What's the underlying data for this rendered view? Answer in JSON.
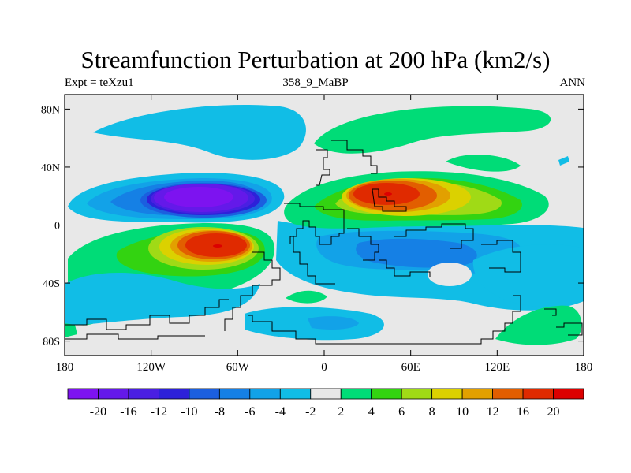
{
  "chart_data": {
    "type": "heatmap",
    "title": "Streamfunction Perturbation at 200 hPa (km2/s)",
    "subtitle_left": "Expt = teXzu1",
    "subtitle_center": "358_9_MaBP",
    "subtitle_right": "ANN",
    "x_range": [
      -180,
      180
    ],
    "y_range": [
      -90,
      90
    ],
    "x_ticks": [
      {
        "value": -180,
        "label": "180"
      },
      {
        "value": -120,
        "label": "120W"
      },
      {
        "value": -60,
        "label": "60W"
      },
      {
        "value": 0,
        "label": "0"
      },
      {
        "value": 60,
        "label": "60E"
      },
      {
        "value": 120,
        "label": "120E"
      },
      {
        "value": 180,
        "label": "180"
      }
    ],
    "y_ticks": [
      {
        "value": 80,
        "label": "80N"
      },
      {
        "value": 40,
        "label": "40N"
      },
      {
        "value": 0,
        "label": "0"
      },
      {
        "value": -40,
        "label": "40S"
      },
      {
        "value": -80,
        "label": "80S"
      }
    ],
    "colorbar": {
      "labels": [
        "-20",
        "-16",
        "-12",
        "-10",
        "-8",
        "-6",
        "-4",
        "-2",
        "2",
        "4",
        "6",
        "8",
        "10",
        "12",
        "16",
        "20"
      ],
      "colors": [
        "#7d13f0",
        "#6419e9",
        "#4a1fe2",
        "#2d21d9",
        "#1b5fdf",
        "#1580e5",
        "#12a2e8",
        "#11bde6",
        "#e8e8e8",
        "#00dc77",
        "#33d311",
        "#a0da16",
        "#dbd100",
        "#e2a000",
        "#e25e00",
        "#e02a00",
        "#dc0000"
      ]
    },
    "features": [
      {
        "name": "negative-center-central-pacific",
        "lon": -70,
        "lat": 22,
        "peak": -20
      },
      {
        "name": "positive-center-south-pacific",
        "lon": -72,
        "lat": -14,
        "peak": 20
      },
      {
        "name": "positive-center-asia",
        "lon": 45,
        "lat": 20,
        "peak": 20
      },
      {
        "name": "negative-band-southern-indian-ocean",
        "lon": 60,
        "lat": -20,
        "peak": -8
      },
      {
        "name": "negative-band-north-pacific",
        "lon": -100,
        "lat": 68,
        "peak": -4
      },
      {
        "name": "positive-band-northern-eurasia",
        "lon": 70,
        "lat": 62,
        "peak": 4
      }
    ]
  }
}
